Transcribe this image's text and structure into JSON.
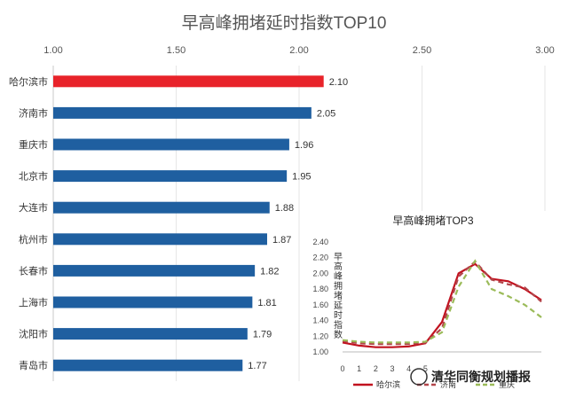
{
  "chart_data": [
    {
      "type": "bar",
      "orientation": "horizontal",
      "title": "早高峰拥堵延时指数TOP10",
      "categories": [
        "哈尔滨市",
        "济南市",
        "重庆市",
        "北京市",
        "大连市",
        "杭州市",
        "长春市",
        "上海市",
        "沈阳市",
        "青岛市"
      ],
      "values": [
        2.1,
        2.05,
        1.96,
        1.95,
        1.88,
        1.87,
        1.82,
        1.81,
        1.79,
        1.77
      ],
      "value_labels": [
        "2.10",
        "2.05",
        "1.96",
        "1.95",
        "1.88",
        "1.87",
        "1.82",
        "1.81",
        "1.79",
        "1.77"
      ],
      "highlight_index": 0,
      "colors": {
        "highlight": "#e8232a",
        "bar": "#1f5fa0"
      },
      "xlim": [
        1.0,
        3.0
      ],
      "xticks": [
        "1.00",
        "1.50",
        "2.00",
        "2.50",
        "3.00"
      ],
      "xaxis_position": "top",
      "grid": true
    },
    {
      "type": "line",
      "title": "早高峰拥堵TOP3",
      "ylabel": "早高峰拥堵延时指数",
      "ylim": [
        1.0,
        2.4
      ],
      "yticks": [
        "1.00",
        "1.20",
        "1.40",
        "1.60",
        "1.80",
        "2.00",
        "2.20",
        "2.40"
      ],
      "x": [
        0,
        1,
        2,
        3,
        4,
        5,
        6,
        7,
        8,
        9,
        10,
        11,
        12
      ],
      "xticks": [
        "0",
        "1",
        "2",
        "3",
        "4",
        "5"
      ],
      "series": [
        {
          "name": "哈尔滨",
          "color": "#c1121f",
          "dash": "solid",
          "values": [
            1.12,
            1.08,
            1.06,
            1.06,
            1.07,
            1.11,
            1.38,
            2.0,
            2.12,
            1.93,
            1.9,
            1.8,
            1.66
          ]
        },
        {
          "name": "济南",
          "color": "#b2454a",
          "dash": "dashed",
          "values": [
            1.14,
            1.11,
            1.1,
            1.1,
            1.1,
            1.12,
            1.3,
            1.96,
            2.15,
            1.92,
            1.86,
            1.82,
            1.64
          ]
        },
        {
          "name": "重庆",
          "color": "#9bbb59",
          "dash": "dashed",
          "values": [
            1.15,
            1.13,
            1.12,
            1.12,
            1.12,
            1.13,
            1.25,
            1.83,
            2.16,
            1.8,
            1.71,
            1.6,
            1.44
          ]
        }
      ],
      "legend_position": "bottom"
    }
  ],
  "watermark": "清华同衡规划播报"
}
